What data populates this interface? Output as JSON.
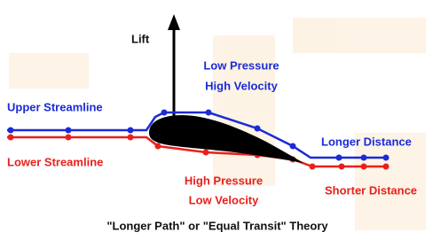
{
  "lift": "Lift",
  "upper_region": {
    "line1": "Low Pressure",
    "line2": "High Velocity"
  },
  "upper_streamline": "Upper Streamline",
  "lower_streamline": "Lower Streamline",
  "lower_region": {
    "line1": "High Pressure",
    "line2": "Low Velocity"
  },
  "longer_distance": "Longer Distance",
  "shorter_distance": "Shorter Distance",
  "caption": "\"Longer Path\" or \"Equal Transit\" Theory"
}
